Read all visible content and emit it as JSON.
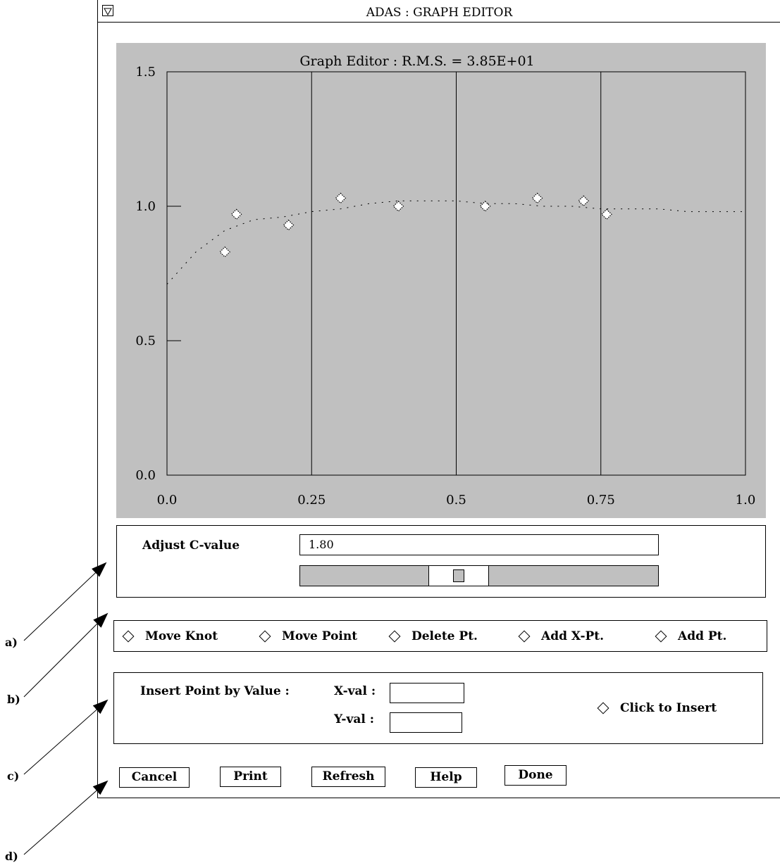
{
  "window": {
    "title": "ADAS :  GRAPH EDITOR"
  },
  "chart_data": {
    "type": "scatter",
    "title": "Graph Editor : R.M.S. = 3.85E+01",
    "xlabel": "",
    "ylabel": "",
    "xlim": [
      0.0,
      1.0
    ],
    "ylim": [
      0.0,
      1.5
    ],
    "x_ticks": [
      "0.0",
      "0.25",
      "0.5",
      "0.75",
      "1.0"
    ],
    "y_ticks": [
      "0.0",
      "0.5",
      "1.0",
      "1.5"
    ],
    "grid": "vertical",
    "points": [
      {
        "x": 0.1,
        "y": 0.83
      },
      {
        "x": 0.12,
        "y": 0.97
      },
      {
        "x": 0.21,
        "y": 0.93
      },
      {
        "x": 0.3,
        "y": 1.03
      },
      {
        "x": 0.4,
        "y": 1.0
      },
      {
        "x": 0.55,
        "y": 1.0
      },
      {
        "x": 0.64,
        "y": 1.03
      },
      {
        "x": 0.72,
        "y": 1.02
      },
      {
        "x": 0.76,
        "y": 0.97
      }
    ],
    "fit_curve": [
      {
        "x": 0.0,
        "y": 0.71
      },
      {
        "x": 0.05,
        "y": 0.83
      },
      {
        "x": 0.1,
        "y": 0.91
      },
      {
        "x": 0.15,
        "y": 0.95
      },
      {
        "x": 0.2,
        "y": 0.96
      },
      {
        "x": 0.25,
        "y": 0.98
      },
      {
        "x": 0.3,
        "y": 0.99
      },
      {
        "x": 0.35,
        "y": 1.01
      },
      {
        "x": 0.4,
        "y": 1.02
      },
      {
        "x": 0.45,
        "y": 1.02
      },
      {
        "x": 0.5,
        "y": 1.02
      },
      {
        "x": 0.55,
        "y": 1.01
      },
      {
        "x": 0.6,
        "y": 1.01
      },
      {
        "x": 0.65,
        "y": 1.0
      },
      {
        "x": 0.7,
        "y": 1.0
      },
      {
        "x": 0.75,
        "y": 0.99
      },
      {
        "x": 0.8,
        "y": 0.99
      },
      {
        "x": 0.85,
        "y": 0.99
      },
      {
        "x": 0.9,
        "y": 0.98
      },
      {
        "x": 0.95,
        "y": 0.98
      },
      {
        "x": 1.0,
        "y": 0.98
      }
    ]
  },
  "cvalue": {
    "label": "Adjust C-value",
    "value": "1.80",
    "slider_fraction": 0.43
  },
  "modes": {
    "items": [
      {
        "label": "Move Knot",
        "name": "radio-move-knot"
      },
      {
        "label": "Move Point",
        "name": "radio-move-point"
      },
      {
        "label": "Delete Pt.",
        "name": "radio-delete-pt"
      },
      {
        "label": "Add X-Pt.",
        "name": "radio-add-x-pt"
      },
      {
        "label": "Add Pt.",
        "name": "radio-add-pt"
      }
    ]
  },
  "insert": {
    "title": "Insert Point by Value :",
    "x_label": "X-val :",
    "y_label": "Y-val :",
    "x_value": "",
    "y_value": "",
    "click_label": "Click to Insert"
  },
  "buttons": {
    "cancel": "Cancel",
    "print": "Print",
    "refresh": "Refresh",
    "help": "Help",
    "done": "Done"
  },
  "annotations": [
    "a)",
    "b)",
    "c)",
    "d)"
  ]
}
